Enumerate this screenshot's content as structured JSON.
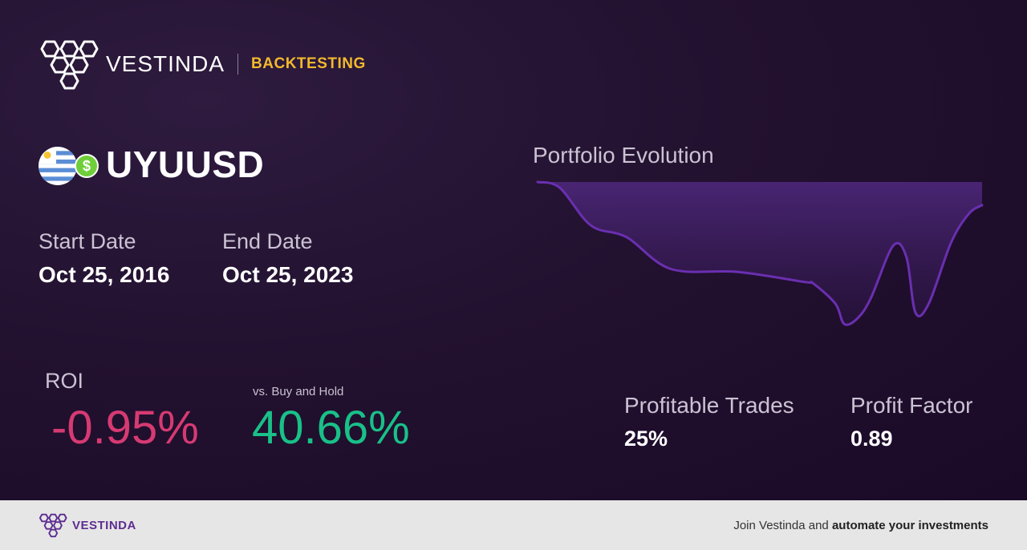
{
  "brand": {
    "name": "VESTINDA",
    "tag": "BACKTESTING"
  },
  "asset": {
    "symbol": "UYUUSD",
    "flag_icon": "uruguay-flag-icon",
    "currency_icon": "dollar-coin-icon",
    "currency_symbol": "$"
  },
  "dates": {
    "start_label": "Start Date",
    "start_value": "Oct 25, 2016",
    "end_label": "End Date",
    "end_value": "Oct 25, 2023"
  },
  "roi": {
    "label": "ROI",
    "value": "-0.95%",
    "value_color": "#d63a72"
  },
  "buy_hold": {
    "label": "vs. Buy and Hold",
    "value": "40.66%",
    "value_color": "#19c088"
  },
  "chart": {
    "title": "Portfolio Evolution",
    "line_color": "#6a2fb0"
  },
  "chart_data": {
    "type": "area",
    "title": "Portfolio Evolution",
    "xlabel": "",
    "ylabel": "",
    "x": [
      0,
      0.05,
      0.12,
      0.2,
      0.3,
      0.45,
      0.6,
      0.62,
      0.67,
      0.69,
      0.72,
      0.75,
      0.8,
      0.83,
      0.85,
      0.88,
      0.93,
      0.97,
      1.0
    ],
    "values": [
      100,
      98,
      85,
      81,
      70,
      69,
      65.5,
      65,
      58,
      51,
      53,
      60,
      78,
      74,
      55,
      58,
      79,
      89,
      92
    ],
    "grid": false,
    "legend": "none"
  },
  "stats": [
    {
      "label": "Profitable Trades",
      "value": "25%"
    },
    {
      "label": "Profit Factor",
      "value": "0.89"
    }
  ],
  "footer": {
    "brand": "VESTINDA",
    "cta_prefix": "Join Vestinda and ",
    "cta_bold": "automate your investments"
  }
}
